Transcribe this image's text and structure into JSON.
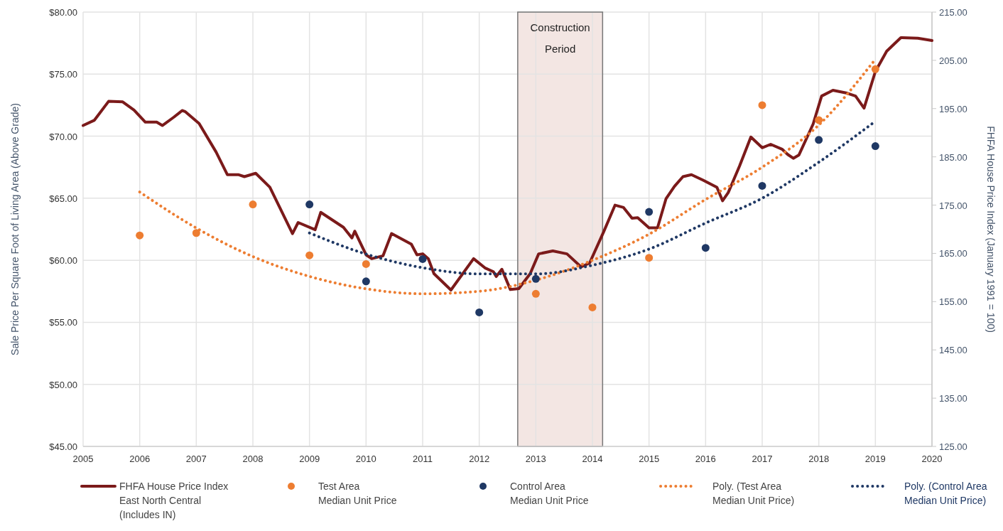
{
  "chart_data": {
    "type": "line",
    "xlabel": null,
    "ylabel": "Sale Price Per Square Foot of Living Area (Above Grade)",
    "y2label": "FHFA House Price Index (January 1991 = 100)",
    "xlim": [
      2005,
      2020
    ],
    "xticks": [
      2005,
      2006,
      2007,
      2008,
      2009,
      2010,
      2011,
      2012,
      2013,
      2014,
      2015,
      2016,
      2017,
      2018,
      2019,
      2020
    ],
    "ylim": [
      45,
      80
    ],
    "yticks": [
      {
        "value": 45,
        "label": "$45.00"
      },
      {
        "value": 50,
        "label": "$50.00"
      },
      {
        "value": 55,
        "label": "$55.00"
      },
      {
        "value": 60,
        "label": "$60.00"
      },
      {
        "value": 65,
        "label": "$65.00"
      },
      {
        "value": 70,
        "label": "$70.00"
      },
      {
        "value": 75,
        "label": "$75.00"
      },
      {
        "value": 80,
        "label": "$80.00"
      }
    ],
    "y2lim": [
      125,
      215
    ],
    "y2ticks": [
      {
        "value": 125,
        "label": "125.00"
      },
      {
        "value": 135,
        "label": "135.00"
      },
      {
        "value": 145,
        "label": "145.00"
      },
      {
        "value": 155,
        "label": "155.00"
      },
      {
        "value": 165,
        "label": "165.00"
      },
      {
        "value": 175,
        "label": "175.00"
      },
      {
        "value": 185,
        "label": "185.00"
      },
      {
        "value": 195,
        "label": "195.00"
      },
      {
        "value": 205,
        "label": "205.00"
      },
      {
        "value": 215,
        "label": "215.00"
      }
    ],
    "grid": true,
    "legend": "bottom",
    "bands": [
      {
        "axis": "x",
        "from": 2012.68,
        "to": 2014.18,
        "label": "Construction\nPeriod",
        "color": "#f3e6e3"
      }
    ],
    "series": [
      {
        "name": "FHFA House Price Index\nEast North Central\n(Includes IN)",
        "type": "line",
        "axis": "y2",
        "color": "#7b1a1a",
        "line_style": "solid",
        "marker": "none",
        "x": [
          2005.0,
          2005.2,
          2005.45,
          2005.7,
          2005.9,
          2006.1,
          2006.3,
          2006.4,
          2006.6,
          2006.75,
          2006.8,
          2007.05,
          2007.35,
          2007.55,
          2007.75,
          2007.85,
          2008.05,
          2008.3,
          2008.45,
          2008.7,
          2008.8,
          2009.1,
          2009.2,
          2009.6,
          2009.75,
          2009.8,
          2010.0,
          2010.1,
          2010.3,
          2010.45,
          2010.8,
          2010.9,
          2011.0,
          2011.1,
          2011.2,
          2011.5,
          2011.9,
          2012.1,
          2012.25,
          2012.3,
          2012.4,
          2012.55,
          2012.7,
          2012.9,
          2013.05,
          2013.3,
          2013.55,
          2013.8,
          2013.95,
          2014.2,
          2014.4,
          2014.55,
          2014.7,
          2014.8,
          2015.0,
          2015.15,
          2015.3,
          2015.45,
          2015.6,
          2015.75,
          2015.95,
          2016.2,
          2016.3,
          2016.4,
          2016.6,
          2016.8,
          2017.0,
          2017.15,
          2017.35,
          2017.45,
          2017.55,
          2017.65,
          2017.9,
          2018.05,
          2018.25,
          2018.5,
          2018.65,
          2018.8,
          2019.0,
          2019.2,
          2019.45,
          2019.75,
          2020.0
        ],
        "values": [
          191.5,
          192.6,
          196.5,
          196.4,
          194.7,
          192.2,
          192.2,
          191.5,
          193.2,
          194.6,
          194.4,
          191.9,
          186.0,
          181.3,
          181.3,
          180.9,
          181.6,
          178.7,
          175.1,
          169.1,
          171.4,
          169.9,
          173.5,
          170.4,
          168.2,
          169.6,
          164.7,
          163.9,
          164.5,
          169.1,
          166.9,
          164.7,
          164.9,
          163.9,
          160.8,
          157.4,
          163.9,
          162.0,
          161.2,
          160.2,
          161.7,
          157.5,
          157.7,
          160.8,
          164.9,
          165.5,
          164.9,
          162.2,
          163.0,
          169.5,
          175.0,
          174.5,
          172.3,
          172.4,
          170.3,
          170.3,
          176.3,
          178.9,
          180.9,
          181.3,
          180.2,
          178.7,
          175.9,
          177.6,
          183.1,
          189.1,
          186.9,
          187.6,
          186.6,
          185.5,
          184.7,
          185.4,
          191.8,
          197.6,
          198.8,
          198.2,
          197.6,
          195.1,
          202.7,
          206.9,
          209.7,
          209.6,
          209.1
        ]
      },
      {
        "name": "Test Area\nMedian Unit Price",
        "type": "scatter",
        "axis": "y",
        "color": "#ed7d31",
        "marker": "circle",
        "x": [
          2006,
          2007,
          2008,
          2009,
          2010,
          2013,
          2014,
          2015,
          2017,
          2018,
          2019
        ],
        "values": [
          62.0,
          62.2,
          64.5,
          60.4,
          59.7,
          57.3,
          56.2,
          60.2,
          72.5,
          71.3,
          75.4
        ]
      },
      {
        "name": "Control Area\nMedian Unit Price",
        "type": "scatter",
        "axis": "y",
        "color": "#1f3864",
        "marker": "circle",
        "x": [
          2009,
          2010,
          2011,
          2012,
          2013,
          2015,
          2016,
          2017,
          2018,
          2019
        ],
        "values": [
          64.5,
          58.3,
          60.1,
          55.8,
          58.5,
          63.9,
          61.0,
          66.0,
          69.7,
          69.2
        ]
      },
      {
        "name": "Poly. (Test Area\nMedian Unit Price)",
        "type": "line",
        "axis": "y",
        "color": "#ed7d31",
        "line_style": "dotted",
        "marker": "none",
        "x": [
          2006,
          2007,
          2008,
          2009,
          2010,
          2011,
          2012,
          2013,
          2014,
          2015,
          2016,
          2017,
          2018,
          2019
        ],
        "values": [
          65.5,
          62.6,
          60.3,
          58.7,
          57.7,
          57.3,
          57.5,
          58.4,
          60.0,
          62.1,
          64.9,
          67.5,
          70.9,
          76.2
        ]
      },
      {
        "name": "Poly. (Control Area\nMedian Unit Price)",
        "type": "line",
        "axis": "y",
        "color": "#1f3864",
        "line_style": "dotted",
        "marker": "none",
        "x": [
          2009,
          2010,
          2011,
          2012,
          2013,
          2014,
          2015,
          2016,
          2017,
          2018,
          2019
        ],
        "values": [
          62.2,
          60.5,
          59.4,
          58.9,
          58.9,
          59.6,
          60.9,
          63.0,
          65.0,
          67.9,
          71.2
        ]
      }
    ]
  }
}
